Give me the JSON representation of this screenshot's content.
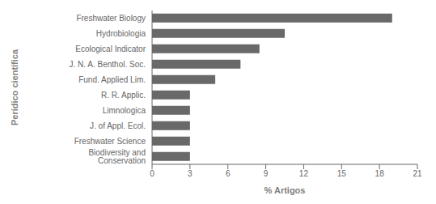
{
  "chart_data": {
    "type": "bar",
    "orientation": "horizontal",
    "categories": [
      "Biodiversity and Conservation",
      "Freshwater Science",
      "J. of Appl. Ecol.",
      "Limnologica",
      "R. R. Applic.",
      "Fund. Applied Lim.",
      "J.  N. A. Benthol. Soc.",
      "Ecological Indicator",
      "Hydrobiologia",
      "Freshwater Biology"
    ],
    "values": [
      3.0,
      3.0,
      3.0,
      3.0,
      3.0,
      5.0,
      7.0,
      8.5,
      10.5,
      19.0
    ],
    "color": "#696969",
    "xlabel": "% Artigos",
    "ylabel": "Perídico científica",
    "xlim": [
      0,
      21
    ],
    "xticks": [
      0,
      3,
      6,
      9,
      12,
      15,
      18,
      21
    ]
  }
}
